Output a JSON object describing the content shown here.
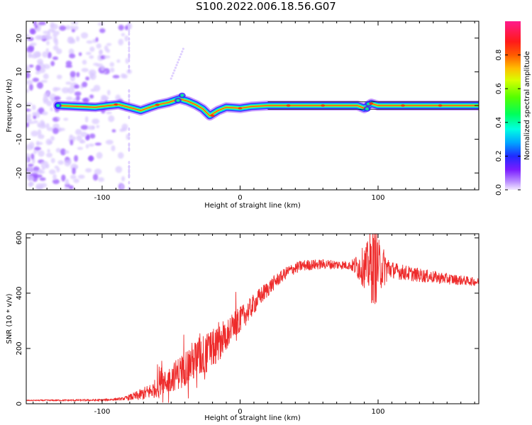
{
  "title": "S100.2022.006.18.56.G07",
  "colors": {
    "line": "#ee2b2b",
    "noise": "#9b5cff",
    "noise_faint": "#d9c8ff"
  },
  "chart_data": [
    {
      "type": "heatmap",
      "name": "spectrogram",
      "xlabel": "Height of straight line (km)",
      "ylabel": "Frequency (Hz)",
      "xlim": [
        -155,
        173
      ],
      "ylim": [
        -25,
        25
      ],
      "xticks": [
        -100,
        0,
        100
      ],
      "xtick_labels": [
        "-100",
        "0",
        "100"
      ],
      "yticks": [
        -20,
        -10,
        0,
        10,
        20
      ],
      "ytick_labels": [
        "-20",
        "-10",
        "0",
        "10",
        "20"
      ],
      "colorbar": {
        "label": "Normalized spectral amplitude",
        "range": [
          0,
          1
        ],
        "ticks": [
          0.0,
          0.2,
          0.4,
          0.6,
          0.8
        ],
        "tick_labels": [
          "0.0",
          "0.2",
          "0.4",
          "0.6",
          "0.8"
        ],
        "colormap": "rainbow (violet to red to magenta)"
      },
      "signal_ridge": [
        {
          "x": -132,
          "freq": 0.0
        },
        {
          "x": -105,
          "freq": -0.5
        },
        {
          "x": -95,
          "freq": 0.0
        },
        {
          "x": -88,
          "freq": 0.3
        },
        {
          "x": -78,
          "freq": -0.8
        },
        {
          "x": -72,
          "freq": -1.5
        },
        {
          "x": -66,
          "freq": -0.6
        },
        {
          "x": -60,
          "freq": 0.2
        },
        {
          "x": -52,
          "freq": 0.9
        },
        {
          "x": -44,
          "freq": 2.0
        },
        {
          "x": -38,
          "freq": 1.3
        },
        {
          "x": -32,
          "freq": 0.2
        },
        {
          "x": -27,
          "freq": -1.0
        },
        {
          "x": -22,
          "freq": -3.0
        },
        {
          "x": -16,
          "freq": -1.5
        },
        {
          "x": -10,
          "freq": -0.5
        },
        {
          "x": 0,
          "freq": -0.8
        },
        {
          "x": 8,
          "freq": -0.3
        },
        {
          "x": 20,
          "freq": 0.0
        },
        {
          "x": 85,
          "freq": 0.0
        },
        {
          "x": 90,
          "freq": -0.8
        },
        {
          "x": 95,
          "freq": 0.6
        },
        {
          "x": 100,
          "freq": 0.0
        },
        {
          "x": 173,
          "freq": 0.0
        }
      ],
      "noise_region": [
        -155,
        -80
      ]
    },
    {
      "type": "line",
      "name": "snr",
      "xlabel": "Height of straight line (km)",
      "ylabel": "SNR (10 * v/v)",
      "xlim": [
        -155,
        173
      ],
      "ylim": [
        0,
        615
      ],
      "xticks": [
        -100,
        0,
        100
      ],
      "xtick_labels": [
        "-100",
        "0",
        "100"
      ],
      "yticks": [
        0,
        200,
        400,
        600
      ],
      "ytick_labels": [
        "0",
        "200",
        "400",
        "600"
      ],
      "trend": [
        {
          "x": -155,
          "y": 12
        },
        {
          "x": -100,
          "y": 13
        },
        {
          "x": -85,
          "y": 18
        },
        {
          "x": -75,
          "y": 28
        },
        {
          "x": -65,
          "y": 45
        },
        {
          "x": -55,
          "y": 75
        },
        {
          "x": -45,
          "y": 110
        },
        {
          "x": -35,
          "y": 150
        },
        {
          "x": -25,
          "y": 180
        },
        {
          "x": -15,
          "y": 220
        },
        {
          "x": -5,
          "y": 280
        },
        {
          "x": 5,
          "y": 330
        },
        {
          "x": 15,
          "y": 390
        },
        {
          "x": 25,
          "y": 440
        },
        {
          "x": 35,
          "y": 480
        },
        {
          "x": 45,
          "y": 500
        },
        {
          "x": 60,
          "y": 505
        },
        {
          "x": 75,
          "y": 502
        },
        {
          "x": 90,
          "y": 495
        },
        {
          "x": 100,
          "y": 500
        },
        {
          "x": 115,
          "y": 478
        },
        {
          "x": 130,
          "y": 465
        },
        {
          "x": 145,
          "y": 455
        },
        {
          "x": 160,
          "y": 447
        },
        {
          "x": 173,
          "y": 440
        }
      ],
      "noise_amplitude_note_values": [
        {
          "x": -155,
          "amp": 2
        },
        {
          "x": -85,
          "amp": 5
        },
        {
          "x": -60,
          "amp": 35
        },
        {
          "x": -30,
          "amp": 80
        },
        {
          "x": 0,
          "amp": 45
        },
        {
          "x": 30,
          "amp": 22
        },
        {
          "x": 80,
          "amp": 15
        },
        {
          "x": 97,
          "amp": 120
        },
        {
          "x": 110,
          "amp": 30
        },
        {
          "x": 173,
          "amp": 14
        }
      ]
    }
  ]
}
